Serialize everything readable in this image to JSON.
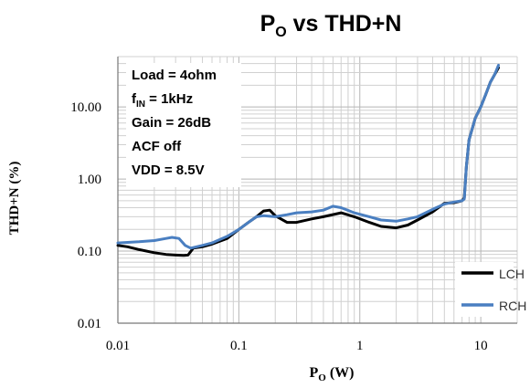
{
  "chart_data": {
    "type": "line",
    "title_main": "P",
    "title_sub": "O",
    "title_rest": " vs THD+N",
    "xlabel_main": "P",
    "xlabel_sub": "O",
    "xlabel_rest": " (W)",
    "ylabel": "THD+N (%)",
    "x_scale": "log",
    "y_scale": "log",
    "xlim": [
      0.01,
      20
    ],
    "ylim": [
      0.01,
      50
    ],
    "x_ticks": [
      0.01,
      0.1,
      1,
      10
    ],
    "x_tick_labels": [
      "0.01",
      "0.1",
      "1",
      "10"
    ],
    "y_ticks": [
      0.01,
      0.1,
      1,
      10
    ],
    "y_tick_labels": [
      "0.01",
      "0.10",
      "1.00",
      "10.00"
    ],
    "grid": true,
    "legend_position": "bottom-right",
    "annotations": [
      {
        "main": "Load = 4ohm"
      },
      {
        "main": "f",
        "sub": "IN",
        "rest": " = 1kHz"
      },
      {
        "main": "Gain = 26dB"
      },
      {
        "main": "ACF off"
      },
      {
        "main": "VDD = 8.5V"
      }
    ],
    "series": [
      {
        "name": "LCH",
        "color": "#000000",
        "x": [
          0.01,
          0.012,
          0.015,
          0.02,
          0.025,
          0.03,
          0.035,
          0.038,
          0.042,
          0.05,
          0.06,
          0.08,
          0.1,
          0.12,
          0.14,
          0.16,
          0.18,
          0.2,
          0.25,
          0.3,
          0.4,
          0.5,
          0.7,
          0.9,
          1.2,
          1.5,
          2,
          2.5,
          3,
          4,
          5,
          6,
          7,
          7.3,
          7.6,
          8,
          9,
          10,
          11,
          12,
          13,
          14
        ],
        "y": [
          0.12,
          0.115,
          0.105,
          0.095,
          0.09,
          0.088,
          0.087,
          0.088,
          0.11,
          0.115,
          0.125,
          0.15,
          0.2,
          0.25,
          0.3,
          0.36,
          0.37,
          0.31,
          0.25,
          0.25,
          0.28,
          0.3,
          0.34,
          0.3,
          0.25,
          0.22,
          0.21,
          0.23,
          0.27,
          0.35,
          0.46,
          0.47,
          0.5,
          0.55,
          1.5,
          3.5,
          7,
          10,
          15,
          22,
          28,
          35
        ]
      },
      {
        "name": "RCH",
        "color": "#4a7fc1",
        "x": [
          0.01,
          0.015,
          0.02,
          0.025,
          0.028,
          0.032,
          0.036,
          0.04,
          0.05,
          0.06,
          0.08,
          0.1,
          0.12,
          0.14,
          0.16,
          0.2,
          0.25,
          0.3,
          0.4,
          0.5,
          0.6,
          0.7,
          0.9,
          1.2,
          1.5,
          2,
          2.5,
          3,
          4,
          5,
          6,
          7,
          7.3,
          7.6,
          8,
          9,
          10,
          11,
          12,
          13,
          14
        ],
        "y": [
          0.13,
          0.135,
          0.14,
          0.15,
          0.155,
          0.15,
          0.12,
          0.11,
          0.12,
          0.13,
          0.16,
          0.2,
          0.25,
          0.3,
          0.31,
          0.3,
          0.32,
          0.34,
          0.35,
          0.37,
          0.42,
          0.4,
          0.34,
          0.3,
          0.27,
          0.26,
          0.28,
          0.3,
          0.38,
          0.45,
          0.48,
          0.5,
          0.53,
          1.5,
          3.5,
          7,
          10,
          15,
          22,
          28,
          38
        ]
      }
    ]
  }
}
